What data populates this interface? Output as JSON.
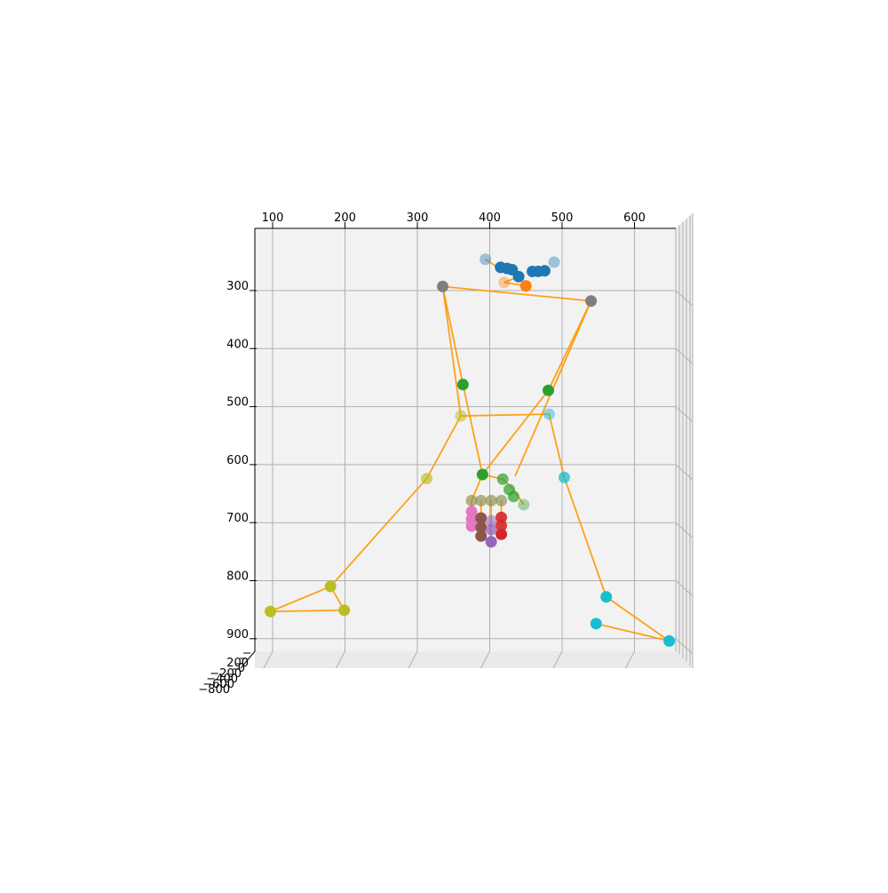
{
  "chart_data": {
    "type": "scatter",
    "projection": "3d",
    "title": "",
    "xlabel": "",
    "ylabel": "",
    "zlabel": "",
    "grid": true,
    "xlim": [
      77,
      655
    ],
    "ylim": [
      930,
      188
    ],
    "x_ticks": [
      "100",
      "200",
      "300",
      "400",
      "500",
      "600"
    ],
    "y_ticks": [
      "300",
      "400",
      "500",
      "600",
      "700",
      "800",
      "900"
    ],
    "z_ticks": [
      "200",
      "0",
      "−200",
      "−400",
      "−600",
      "−800"
    ],
    "colors": {
      "line": "#ff9800",
      "pane": "#f2f2f2",
      "grid": "#b0b0b0"
    },
    "segments": [
      [
        [
          335,
          293
        ],
        [
          540,
          318
        ]
      ],
      [
        [
          335,
          293
        ],
        [
          363,
          462
        ]
      ],
      [
        [
          335,
          293
        ],
        [
          360,
          516
        ]
      ],
      [
        [
          540,
          318
        ],
        [
          481,
          472
        ]
      ],
      [
        [
          540,
          318
        ],
        [
          435,
          620
        ]
      ],
      [
        [
          363,
          462
        ],
        [
          390,
          617
        ]
      ],
      [
        [
          481,
          472
        ],
        [
          390,
          617
        ]
      ],
      [
        [
          360,
          516
        ],
        [
          482,
          513
        ]
      ],
      [
        [
          482,
          513
        ],
        [
          503,
          622
        ]
      ],
      [
        [
          503,
          622
        ],
        [
          561,
          828
        ]
      ],
      [
        [
          561,
          828
        ],
        [
          648,
          904
        ]
      ],
      [
        [
          648,
          904
        ],
        [
          547,
          874
        ]
      ],
      [
        [
          360,
          516
        ],
        [
          313,
          624
        ]
      ],
      [
        [
          313,
          624
        ],
        [
          180,
          810
        ]
      ],
      [
        [
          180,
          810
        ],
        [
          199,
          851
        ]
      ],
      [
        [
          199,
          851
        ],
        [
          97,
          853
        ]
      ],
      [
        [
          97,
          853
        ],
        [
          180,
          810
        ]
      ],
      [
        [
          390,
          617
        ],
        [
          418,
          625
        ]
      ],
      [
        [
          418,
          625
        ],
        [
          433,
          643
        ]
      ],
      [
        [
          433,
          643
        ],
        [
          447,
          669
        ]
      ],
      [
        [
          390,
          617
        ],
        [
          375,
          662
        ]
      ],
      [
        [
          388,
          662
        ],
        [
          388,
          723
        ]
      ],
      [
        [
          402,
          662
        ],
        [
          402,
          733
        ]
      ],
      [
        [
          416,
          662
        ],
        [
          416,
          708
        ]
      ],
      [
        [
          375,
          662
        ],
        [
          375,
          690
        ]
      ],
      [
        [
          420,
          286
        ],
        [
          440,
          276
        ]
      ],
      [
        [
          394,
          246
        ],
        [
          416,
          264
        ]
      ],
      [
        [
          440,
          276
        ],
        [
          450,
          292
        ]
      ],
      [
        [
          420,
          286
        ],
        [
          450,
          292
        ]
      ]
    ],
    "series": [
      {
        "color": "#1f77b4",
        "points": [
          [
            394,
            246,
            0.4
          ],
          [
            415,
            260,
            1
          ],
          [
            424,
            262,
            1
          ],
          [
            431,
            264,
            1
          ],
          [
            440,
            276,
            1
          ],
          [
            459,
            267,
            1
          ],
          [
            467,
            267,
            1
          ],
          [
            476,
            266,
            1
          ],
          [
            489,
            251,
            0.4
          ]
        ]
      },
      {
        "color": "#ff7f0e",
        "points": [
          [
            420,
            286,
            0.4
          ],
          [
            450,
            292,
            1
          ]
        ]
      },
      {
        "color": "#7f7f7f",
        "points": [
          [
            335,
            293,
            1
          ],
          [
            540,
            318,
            1
          ]
        ]
      },
      {
        "color": "#2ca02c",
        "points": [
          [
            363,
            462,
            1
          ],
          [
            481,
            472,
            1
          ],
          [
            390,
            617,
            1
          ],
          [
            418,
            625,
            0.7
          ],
          [
            427,
            643,
            0.7
          ],
          [
            433,
            655,
            0.7
          ],
          [
            447,
            669,
            0.4
          ]
        ]
      },
      {
        "color": "#bcbd22",
        "points": [
          [
            360,
            516,
            0.55
          ],
          [
            313,
            624,
            0.65
          ],
          [
            180,
            810,
            1
          ],
          [
            199,
            851,
            1
          ],
          [
            97,
            853,
            1
          ]
        ]
      },
      {
        "color": "#17becf",
        "points": [
          [
            482,
            513,
            0.5
          ],
          [
            503,
            622,
            0.75
          ],
          [
            561,
            828,
            1
          ],
          [
            547,
            874,
            1
          ],
          [
            648,
            904,
            1
          ]
        ]
      },
      {
        "color": "#8c8c4a",
        "points": [
          [
            375,
            662,
            0.65
          ],
          [
            388,
            662,
            0.65
          ],
          [
            402,
            662,
            0.65
          ],
          [
            416,
            662,
            0.65
          ]
        ]
      },
      {
        "color": "#e377c2",
        "points": [
          [
            375,
            681,
            1
          ],
          [
            375,
            694,
            1
          ],
          [
            375,
            706,
            1
          ]
        ]
      },
      {
        "color": "#8c564b",
        "points": [
          [
            388,
            692,
            1
          ],
          [
            388,
            708,
            1
          ],
          [
            388,
            723,
            1
          ]
        ]
      },
      {
        "color": "#9467bd",
        "points": [
          [
            402,
            697,
            0.55
          ],
          [
            402,
            712,
            0.75
          ],
          [
            402,
            733,
            1
          ]
        ]
      },
      {
        "color": "#d62728",
        "points": [
          [
            416,
            691,
            0.9
          ],
          [
            416,
            705,
            0.9
          ],
          [
            416,
            720,
            1
          ]
        ]
      }
    ]
  }
}
